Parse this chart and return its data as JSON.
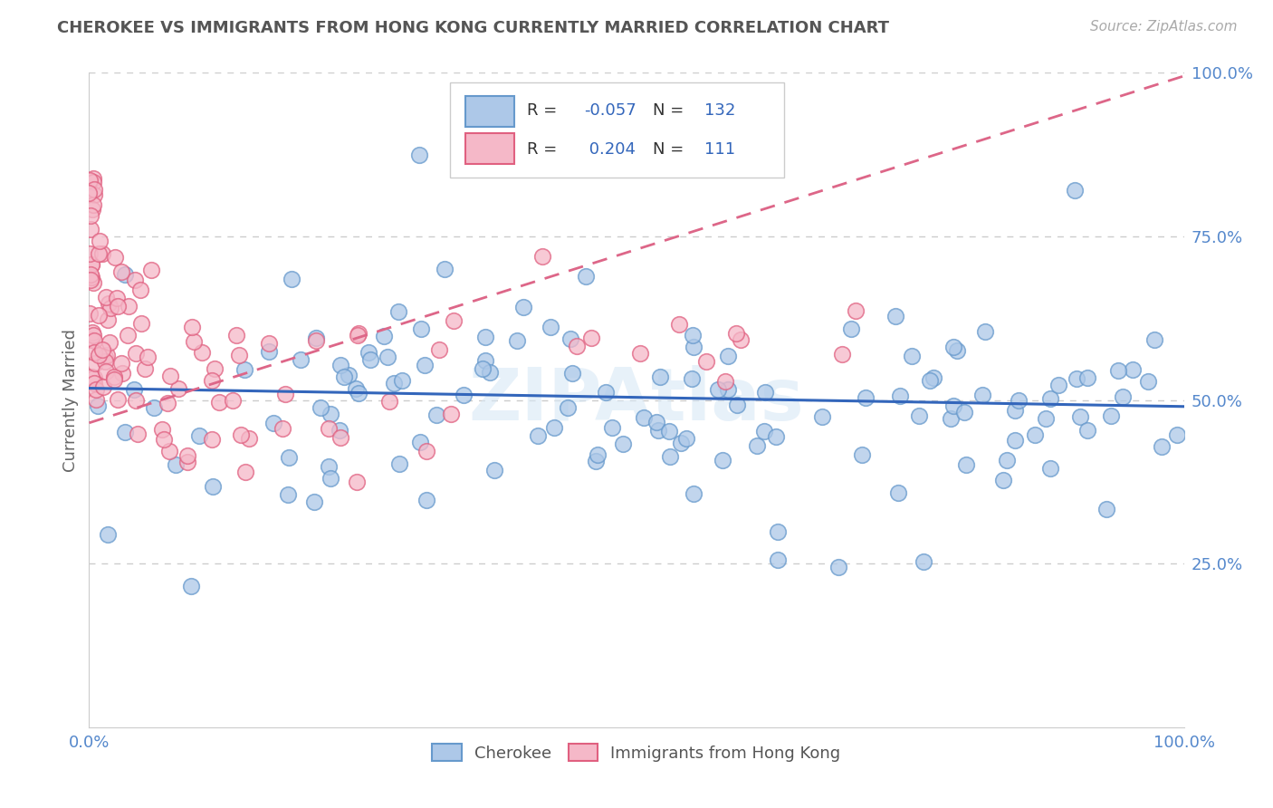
{
  "title": "CHEROKEE VS IMMIGRANTS FROM HONG KONG CURRENTLY MARRIED CORRELATION CHART",
  "source": "Source: ZipAtlas.com",
  "ylabel": "Currently Married",
  "R1": "-0.057",
  "N1": "132",
  "R2": "0.204",
  "N2": "111",
  "legend_label1": "Cherokee",
  "legend_label2": "Immigrants from Hong Kong",
  "background_color": "#ffffff",
  "grid_color": "#cccccc",
  "blue_face_color": "#adc8e8",
  "pink_face_color": "#f5b8c8",
  "blue_edge_color": "#6699cc",
  "pink_edge_color": "#e06080",
  "blue_line_color": "#3366bb",
  "pink_line_color": "#dd6688",
  "title_color": "#555555",
  "tick_color": "#5588cc",
  "r_value_color": "#3366bb",
  "watermark_color": "#d8e8f5",
  "xlim": [
    0.0,
    1.0
  ],
  "ylim": [
    0.0,
    1.0
  ],
  "yticks": [
    0.25,
    0.5,
    0.75,
    1.0
  ],
  "ytick_labels": [
    "25.0%",
    "50.0%",
    "75.0%",
    "100.0%"
  ],
  "xtick_labels": [
    "0.0%",
    "100.0%"
  ]
}
